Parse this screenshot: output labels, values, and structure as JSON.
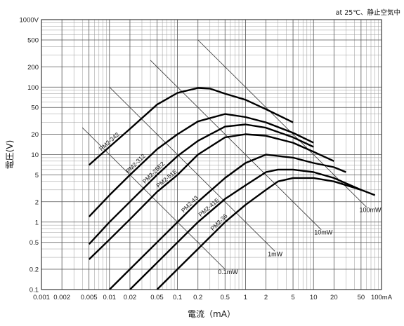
{
  "chart_data": {
    "type": "line",
    "title": "",
    "annotation": "at 25℃、静止空気中",
    "xlabel": "電流（mA）",
    "ylabel": "電圧(V)",
    "x_scale": "log",
    "y_scale": "log",
    "xlim": [
      0.001,
      100
    ],
    "ylim": [
      0.1,
      1000
    ],
    "grid": true,
    "x_ticks": [
      {
        "v": 0.001,
        "label": "0.001"
      },
      {
        "v": 0.002,
        "label": "0.002"
      },
      {
        "v": 0.005,
        "label": "0.005"
      },
      {
        "v": 0.01,
        "label": "0.01"
      },
      {
        "v": 0.02,
        "label": "0.02"
      },
      {
        "v": 0.05,
        "label": "0.05"
      },
      {
        "v": 0.1,
        "label": "0.1"
      },
      {
        "v": 0.2,
        "label": "0.2"
      },
      {
        "v": 0.5,
        "label": "0.5"
      },
      {
        "v": 1,
        "label": "1"
      },
      {
        "v": 2,
        "label": "2"
      },
      {
        "v": 5,
        "label": "5"
      },
      {
        "v": 10,
        "label": "10"
      },
      {
        "v": 20,
        "label": "20"
      },
      {
        "v": 50,
        "label": "50"
      },
      {
        "v": 100,
        "label": "100mA"
      }
    ],
    "y_ticks": [
      {
        "v": 0.1,
        "label": "0.1"
      },
      {
        "v": 0.2,
        "label": "0.2"
      },
      {
        "v": 0.5,
        "label": "0.5"
      },
      {
        "v": 1,
        "label": "1"
      },
      {
        "v": 2,
        "label": "2"
      },
      {
        "v": 5,
        "label": "5"
      },
      {
        "v": 10,
        "label": "10"
      },
      {
        "v": 20,
        "label": "20"
      },
      {
        "v": 50,
        "label": "50"
      },
      {
        "v": 100,
        "label": "100"
      },
      {
        "v": 200,
        "label": "200"
      },
      {
        "v": 500,
        "label": "500"
      },
      {
        "v": 1000,
        "label": "1000V"
      }
    ],
    "series": [
      {
        "name": "PM2-342",
        "points": [
          [
            0.005,
            7
          ],
          [
            0.01,
            13
          ],
          [
            0.02,
            24
          ],
          [
            0.05,
            55
          ],
          [
            0.1,
            82
          ],
          [
            0.2,
            97
          ],
          [
            0.3,
            95
          ],
          [
            0.5,
            80
          ],
          [
            1,
            65
          ],
          [
            2,
            47
          ],
          [
            5,
            30
          ]
        ]
      },
      {
        "name": "PM2-312",
        "points": [
          [
            0.005,
            1.2
          ],
          [
            0.01,
            2.5
          ],
          [
            0.02,
            5
          ],
          [
            0.05,
            12
          ],
          [
            0.1,
            20
          ],
          [
            0.2,
            31
          ],
          [
            0.5,
            40
          ],
          [
            1,
            36
          ],
          [
            2,
            30
          ],
          [
            5,
            21
          ],
          [
            10,
            15
          ]
        ]
      },
      {
        "name": "PM2-25E2",
        "points": [
          [
            0.005,
            0.47
          ],
          [
            0.01,
            1
          ],
          [
            0.02,
            2
          ],
          [
            0.05,
            5
          ],
          [
            0.1,
            9.5
          ],
          [
            0.2,
            16
          ],
          [
            0.5,
            26
          ],
          [
            1,
            28
          ],
          [
            2,
            25
          ],
          [
            5,
            18
          ],
          [
            10,
            13
          ]
        ]
      },
      {
        "name": "PM2-51E",
        "points": [
          [
            0.005,
            0.28
          ],
          [
            0.01,
            0.55
          ],
          [
            0.02,
            1.1
          ],
          [
            0.05,
            2.8
          ],
          [
            0.1,
            5
          ],
          [
            0.2,
            10
          ],
          [
            0.5,
            18
          ],
          [
            1,
            20
          ],
          [
            2,
            19
          ],
          [
            5,
            15
          ],
          [
            10,
            11
          ],
          [
            20,
            8
          ]
        ]
      },
      {
        "name": "PM2-43",
        "points": [
          [
            0.01,
            0.1
          ],
          [
            0.02,
            0.2
          ],
          [
            0.05,
            0.5
          ],
          [
            0.1,
            1
          ],
          [
            0.2,
            2
          ],
          [
            0.5,
            4.5
          ],
          [
            1,
            7.5
          ],
          [
            2,
            10
          ],
          [
            5,
            9
          ],
          [
            10,
            7.5
          ],
          [
            20,
            6.5
          ],
          [
            30,
            5.5
          ]
        ]
      },
      {
        "name": "PM2-41E",
        "points": [
          [
            0.02,
            0.1
          ],
          [
            0.05,
            0.25
          ],
          [
            0.1,
            0.5
          ],
          [
            0.2,
            1
          ],
          [
            0.5,
            2.2
          ],
          [
            1,
            3.5
          ],
          [
            2,
            5.5
          ],
          [
            3,
            6
          ],
          [
            5,
            6
          ],
          [
            10,
            5.5
          ],
          [
            20,
            4.5
          ],
          [
            50,
            3
          ]
        ]
      },
      {
        "name": "PM2-36",
        "points": [
          [
            0.05,
            0.1
          ],
          [
            0.1,
            0.2
          ],
          [
            0.2,
            0.4
          ],
          [
            0.5,
            1
          ],
          [
            1,
            1.8
          ],
          [
            2,
            3
          ],
          [
            3,
            4
          ],
          [
            5,
            4.5
          ],
          [
            10,
            4.5
          ],
          [
            20,
            4
          ],
          [
            50,
            3
          ],
          [
            80,
            2.5
          ]
        ]
      }
    ],
    "power_lines": [
      {
        "name": "0.1mW",
        "points": [
          [
            0.004,
            25
          ],
          [
            0.5,
            0.2
          ]
        ]
      },
      {
        "name": "1mW",
        "points": [
          [
            0.01,
            100
          ],
          [
            2.7,
            0.37
          ]
        ]
      },
      {
        "name": "10mW",
        "points": [
          [
            0.04,
            250
          ],
          [
            13,
            0.77
          ]
        ]
      },
      {
        "name": "100mW",
        "points": [
          [
            0.2,
            500
          ],
          [
            60,
            1.67
          ]
        ]
      }
    ]
  }
}
